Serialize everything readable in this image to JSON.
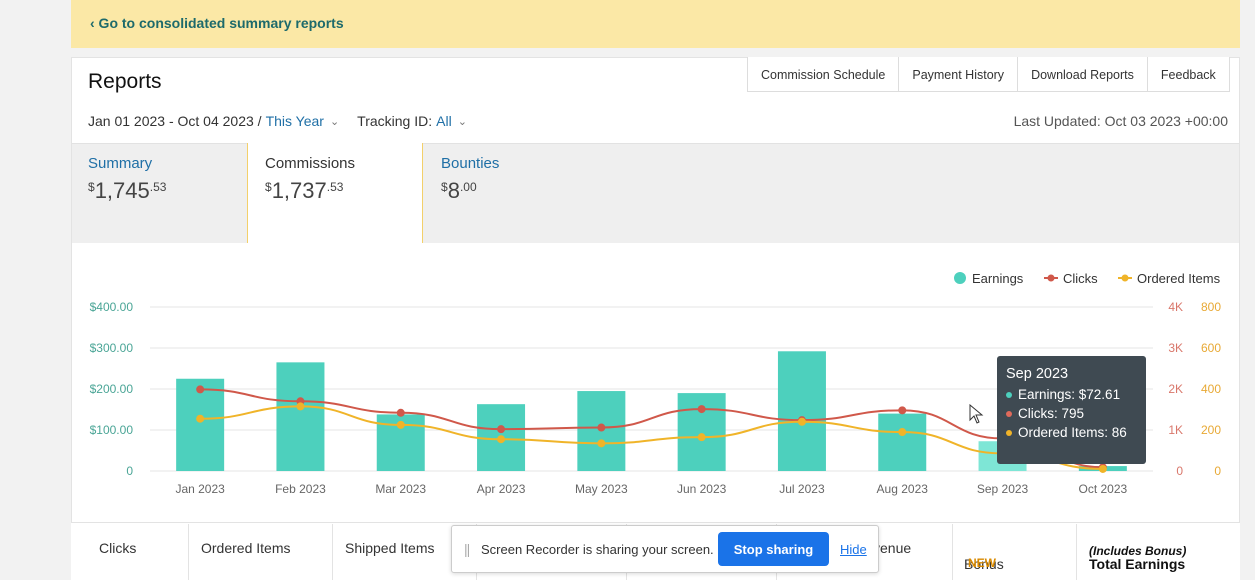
{
  "banner": {
    "link": "‹ Go to consolidated summary reports"
  },
  "page": {
    "title": "Reports"
  },
  "top_tabs": [
    "Commission Schedule",
    "Payment History",
    "Download Reports",
    "Feedback"
  ],
  "filters": {
    "date_range": "Jan 01 2023 - Oct 04 2023 /",
    "period": "This Year",
    "tracking_label": "Tracking ID:",
    "tracking_value": "All",
    "last_updated": "Last Updated: Oct 03 2023 +00:00"
  },
  "summary": {
    "summary": {
      "label": "Summary",
      "currency": "$",
      "whole": "1,745",
      "cents": "53"
    },
    "commissions": {
      "label": "Commissions",
      "currency": "$",
      "whole": "1,737",
      "cents": "53"
    },
    "bounties": {
      "label": "Bounties",
      "currency": "$",
      "whole": "8",
      "cents": "00"
    }
  },
  "chart_data": {
    "type": "bar",
    "categories": [
      "Jan 2023",
      "Feb 2023",
      "Mar 2023",
      "Apr 2023",
      "May 2023",
      "Jun 2023",
      "Jul 2023",
      "Aug 2023",
      "Sep 2023",
      "Oct 2023"
    ],
    "series": [
      {
        "name": "Earnings",
        "type": "bar",
        "axis": "left",
        "color": "#4dd0bd",
        "values": [
          225,
          265,
          138,
          163,
          195,
          190,
          292,
          140,
          72.61,
          12
        ]
      },
      {
        "name": "Clicks",
        "type": "line",
        "axis": "right1",
        "color": "#d0584a",
        "values": [
          1990,
          1700,
          1420,
          1020,
          1060,
          1510,
          1240,
          1480,
          795,
          90
        ]
      },
      {
        "name": "Ordered Items",
        "type": "line",
        "axis": "right2",
        "color": "#f0b429",
        "values": [
          255,
          315,
          225,
          155,
          135,
          165,
          240,
          190,
          86,
          10
        ]
      }
    ],
    "left_axis": {
      "ticks": [
        "$400.00",
        "$300.00",
        "$200.00",
        "$100.00",
        "0"
      ],
      "ylim": [
        0,
        400
      ]
    },
    "right_axis_1": {
      "ticks": [
        "4K",
        "3K",
        "2K",
        "1K",
        "0"
      ],
      "ylim": [
        0,
        4000
      ]
    },
    "right_axis_2": {
      "ticks": [
        "800",
        "600",
        "400",
        "200",
        "0"
      ],
      "ylim": [
        0,
        800
      ]
    },
    "legend": [
      "Earnings",
      "Clicks",
      "Ordered Items"
    ],
    "legend_position": "top-right",
    "grid": true,
    "highlight_index": 8
  },
  "tooltip": {
    "title": "Sep 2023",
    "earnings": "Earnings: $72.61",
    "clicks": "Clicks: 795",
    "ordered": "Ordered Items: 86"
  },
  "table_headers": {
    "clicks": "Clicks",
    "ordered": "Ordered Items",
    "shipped": "Shipped Items",
    "revenue": "venue",
    "bonus": "Bonus",
    "bonus_badge": "NEW",
    "total": "Total Earnings",
    "total_sub": "(Includes Bonus)"
  },
  "recorder": {
    "grip": "||",
    "message": "Screen Recorder is sharing your screen.",
    "stop": "Stop sharing",
    "hide": "Hide"
  }
}
